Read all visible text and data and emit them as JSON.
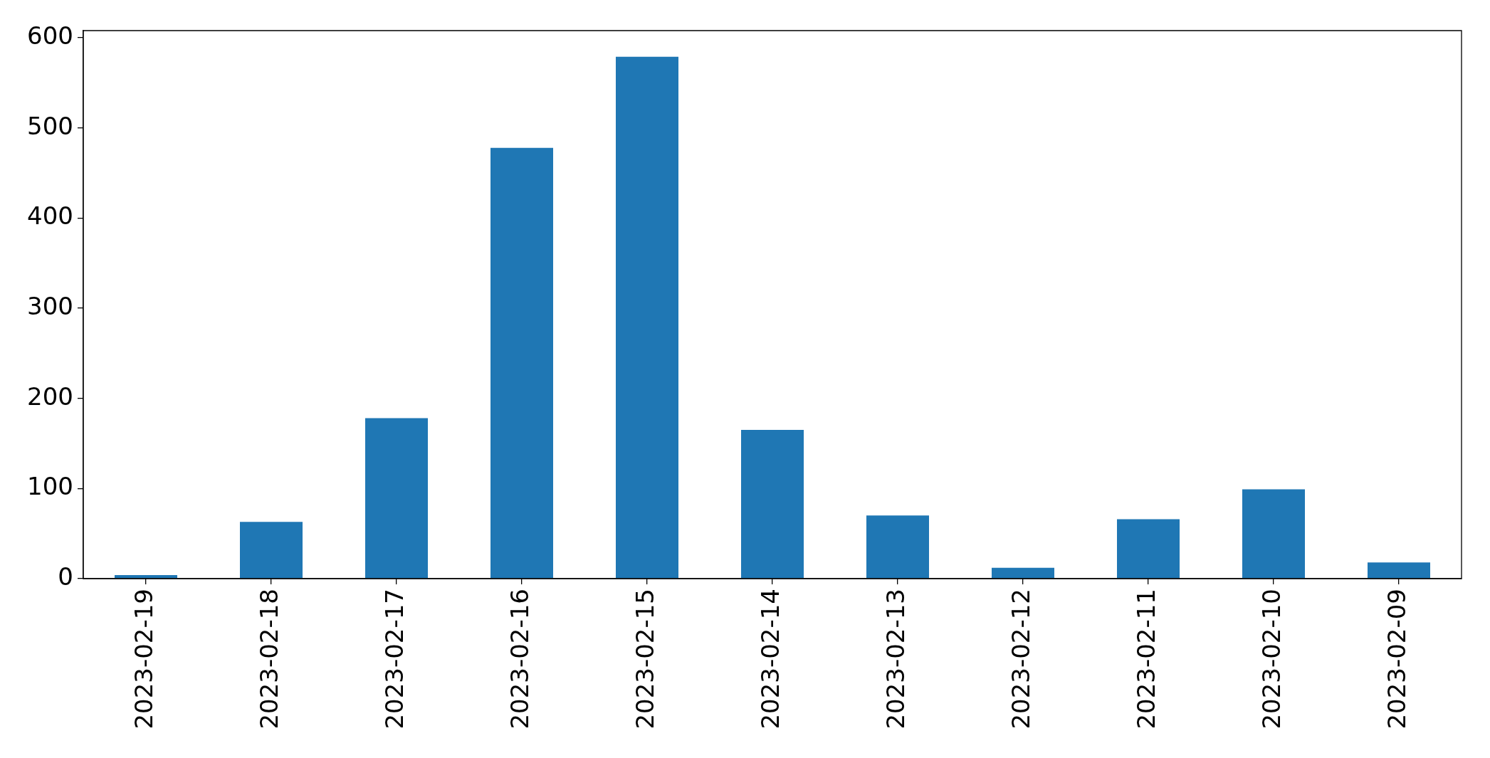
{
  "chart_data": {
    "type": "bar",
    "categories": [
      "2023-02-19",
      "2023-02-18",
      "2023-02-17",
      "2023-02-16",
      "2023-02-15",
      "2023-02-14",
      "2023-02-13",
      "2023-02-12",
      "2023-02-11",
      "2023-02-10",
      "2023-02-09"
    ],
    "values": [
      4,
      63,
      178,
      478,
      579,
      165,
      70,
      12,
      66,
      99,
      18
    ],
    "color": "#1f77b4",
    "ylim": [
      0,
      608
    ],
    "yticks": [
      0,
      100,
      200,
      300,
      400,
      500,
      600
    ]
  }
}
